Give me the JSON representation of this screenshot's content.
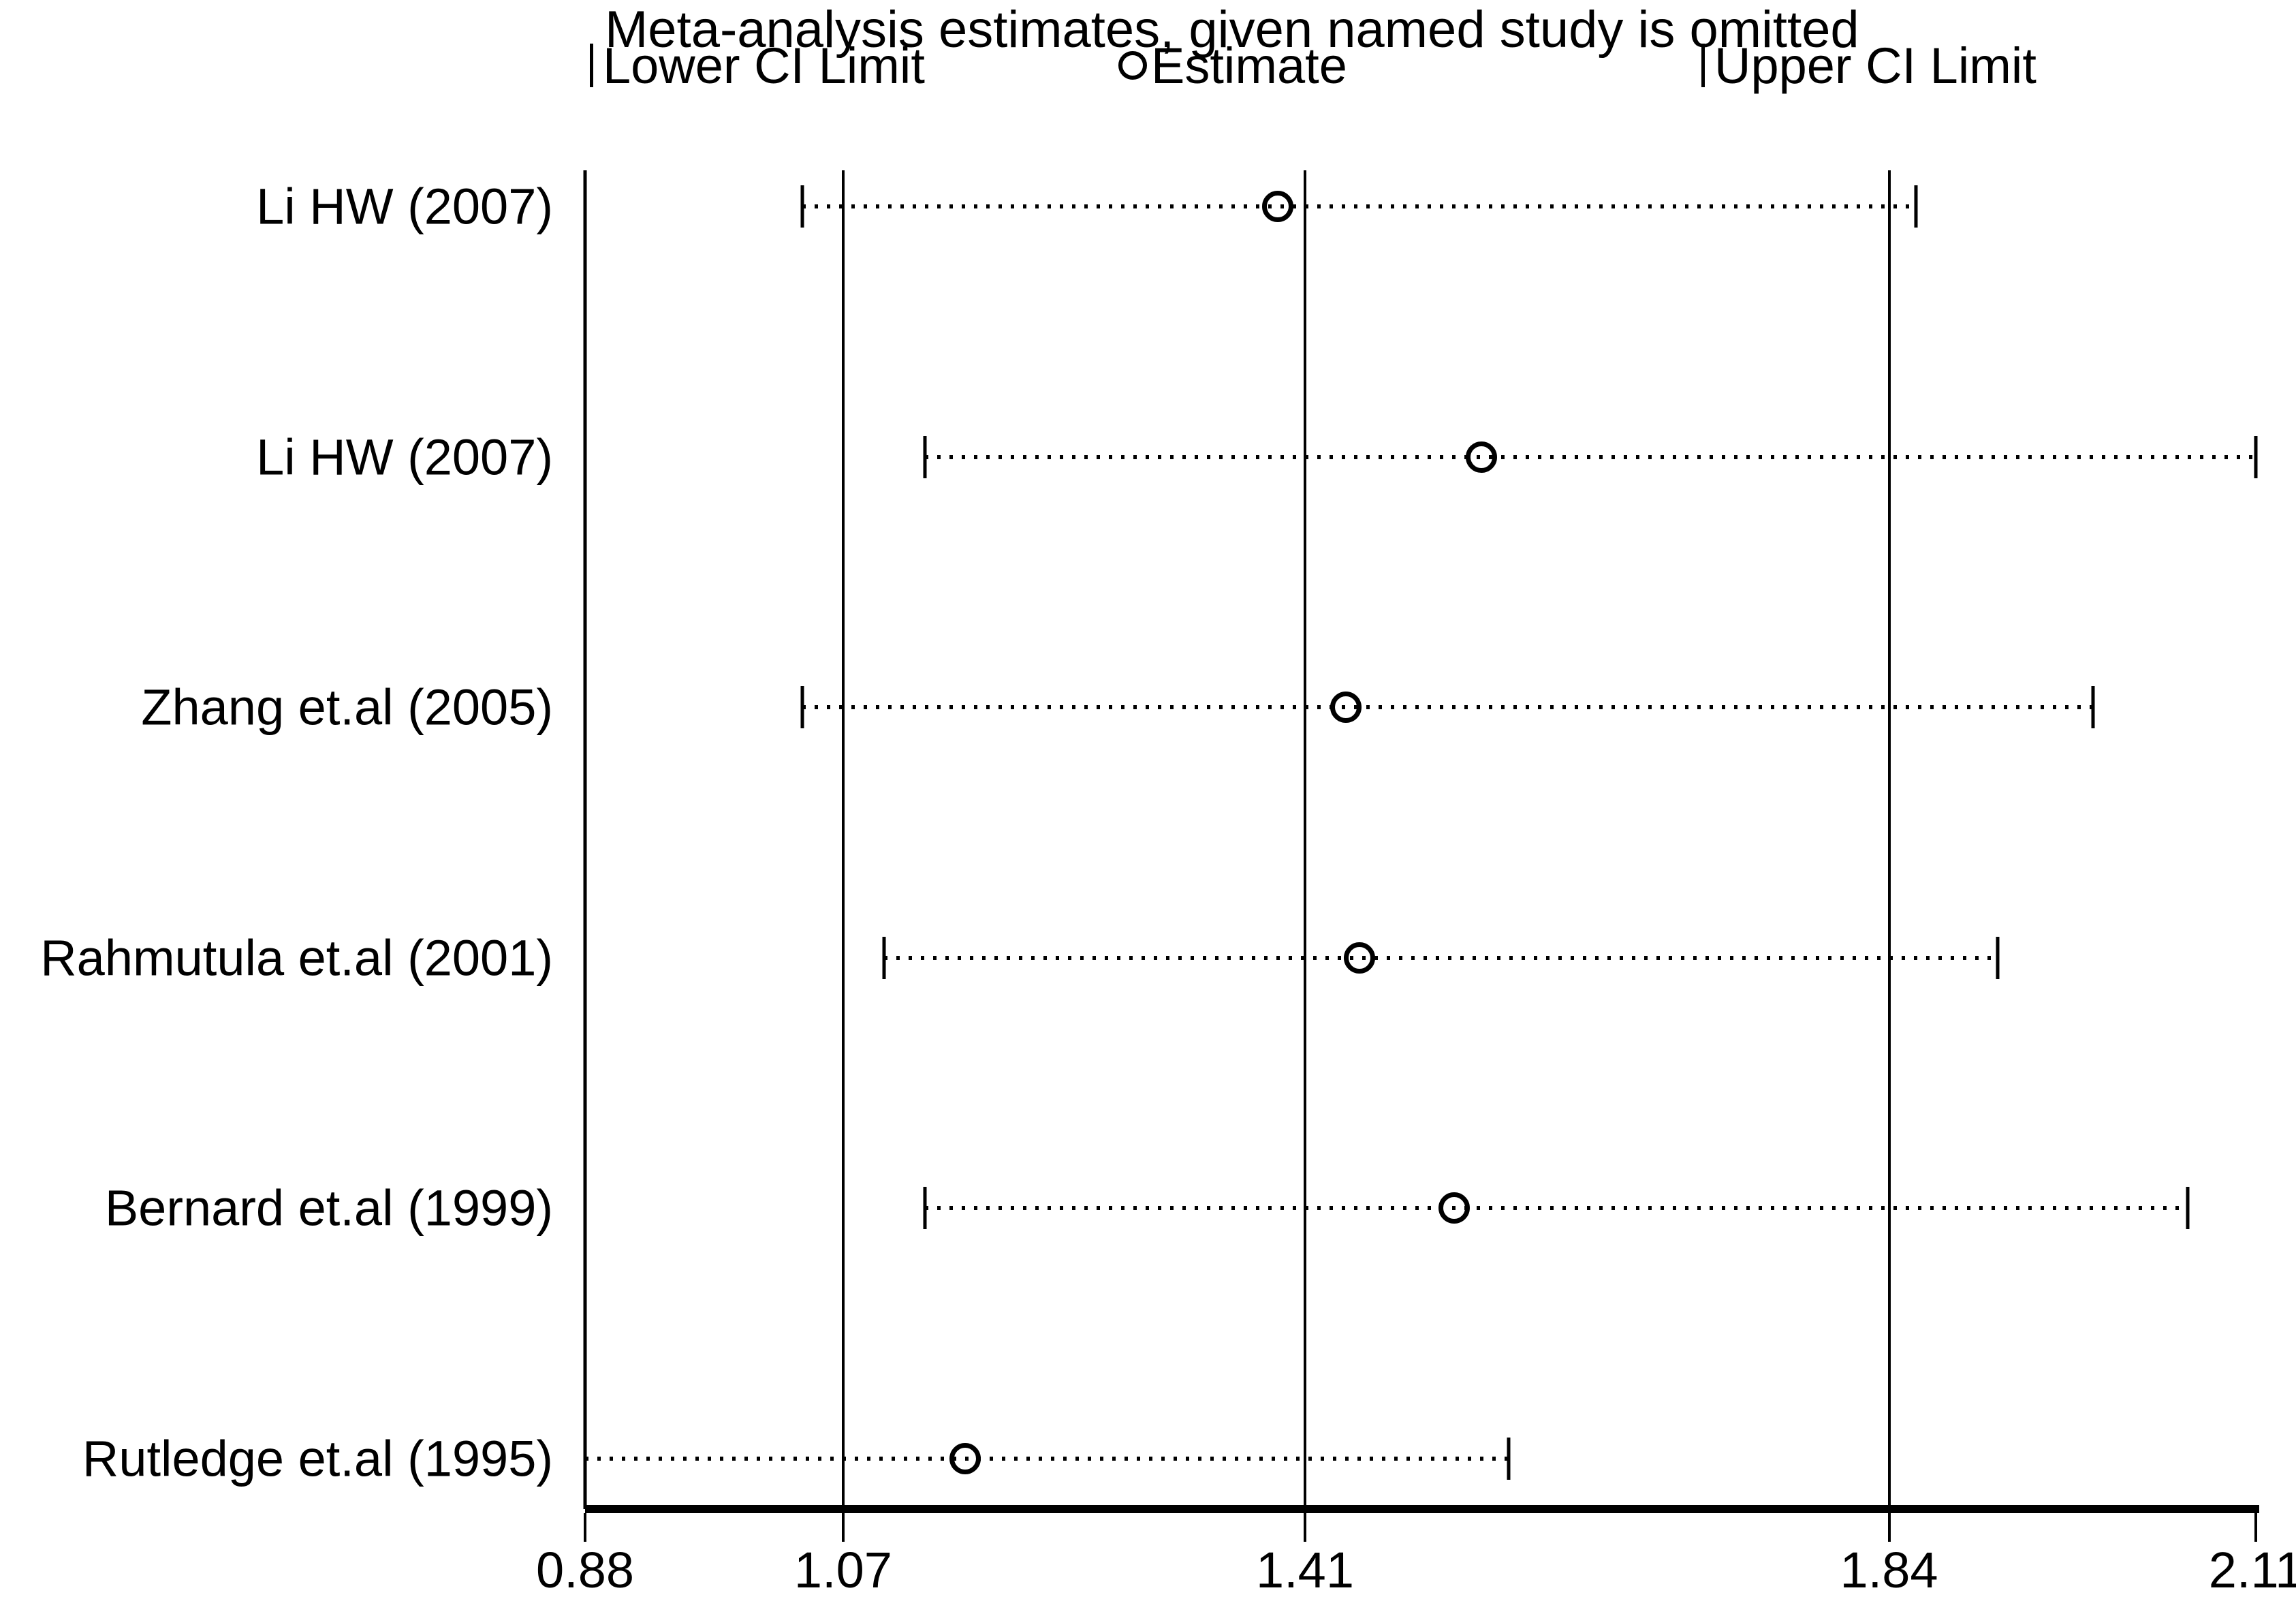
{
  "title": "Meta-analysis estimates, given named study is omitted",
  "legend": {
    "lower": {
      "marker": "vertical-bar",
      "label": "Lower CI Limit"
    },
    "estimate": {
      "marker": "open-circle",
      "label": "Estimate"
    },
    "upper": {
      "marker": "vertical-bar",
      "label": "Upper CI Limit"
    }
  },
  "colors": {
    "foreground": "#000000",
    "background": "#ffffff"
  },
  "chart_data": {
    "type": "scatter",
    "variant": "leave-one-out-forest-plot",
    "title": "Meta-analysis estimates, given named study is omitted",
    "studies": [
      "Li HW (2007)",
      "Li HW (2007)",
      "Zhang et.al (2005)",
      "Rahmutula et.al (2001)",
      "Bernard et.al (1999)",
      "Rutledge et.al (1995)"
    ],
    "series": [
      {
        "name": "Lower CI Limit",
        "values": [
          1.04,
          1.13,
          1.04,
          1.1,
          1.13,
          0.88
        ]
      },
      {
        "name": "Estimate",
        "values": [
          1.39,
          1.54,
          1.44,
          1.45,
          1.52,
          1.16
        ]
      },
      {
        "name": "Upper CI Limit",
        "values": [
          1.86,
          2.11,
          1.99,
          1.92,
          2.06,
          1.56
        ]
      }
    ],
    "reference_lines": [
      1.07,
      1.41,
      1.84
    ],
    "x_ticks": [
      "0.88",
      "1.07",
      "1.41",
      "1.84",
      "2.11"
    ],
    "xlim": [
      0.88,
      2.11
    ],
    "grid": "vertical reference lines at overall lower CI, estimate, upper CI",
    "legend_position": "top"
  }
}
